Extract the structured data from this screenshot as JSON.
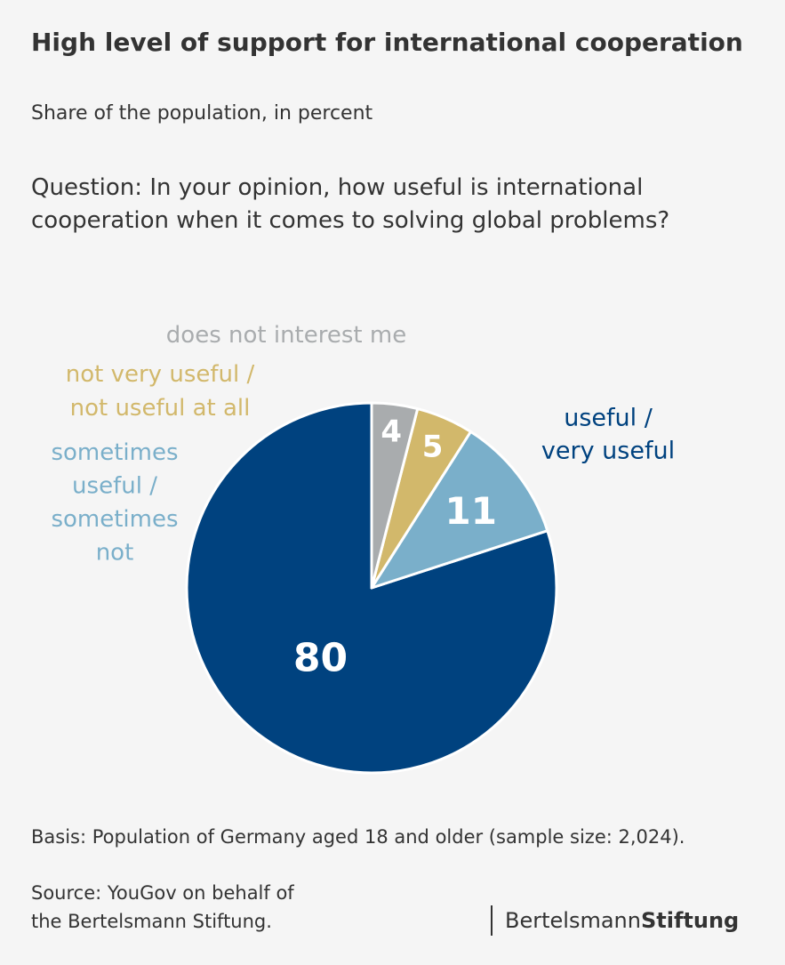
{
  "header": {
    "title": "High level of support for international cooperation",
    "subtitle": "Share of the population, in percent",
    "question_line1": "Question: In your opinion, how useful is international",
    "question_line2": "cooperation when it comes to solving global problems?"
  },
  "chart_data": {
    "type": "pie",
    "start_angle_deg": 0,
    "direction": "clockwise",
    "slices": [
      {
        "label_lines": [
          "useful /",
          "very useful"
        ],
        "value": 80,
        "color": "#00427f",
        "value_color": "#ffffff"
      },
      {
        "label_lines": [
          "sometimes",
          "useful /",
          "sometimes",
          "not"
        ],
        "value": 11,
        "color": "#7aafca",
        "value_color": "#ffffff"
      },
      {
        "label_lines": [
          "not very useful /",
          "not useful at all"
        ],
        "value": 5,
        "color": "#d2b86b",
        "value_color": "#ffffff"
      },
      {
        "label_lines": [
          "does not interest me"
        ],
        "value": 4,
        "color": "#a9acae",
        "value_color": "#ffffff"
      }
    ]
  },
  "footer": {
    "basis": "Basis: Population of Germany aged 18 and older (sample size: 2,024).",
    "source_line1": "Source: YouGov on behalf of",
    "source_line2": "the Bertelsmann Stiftung.",
    "logo_regular": "Bertelsmann",
    "logo_bold": "Stiftung"
  }
}
